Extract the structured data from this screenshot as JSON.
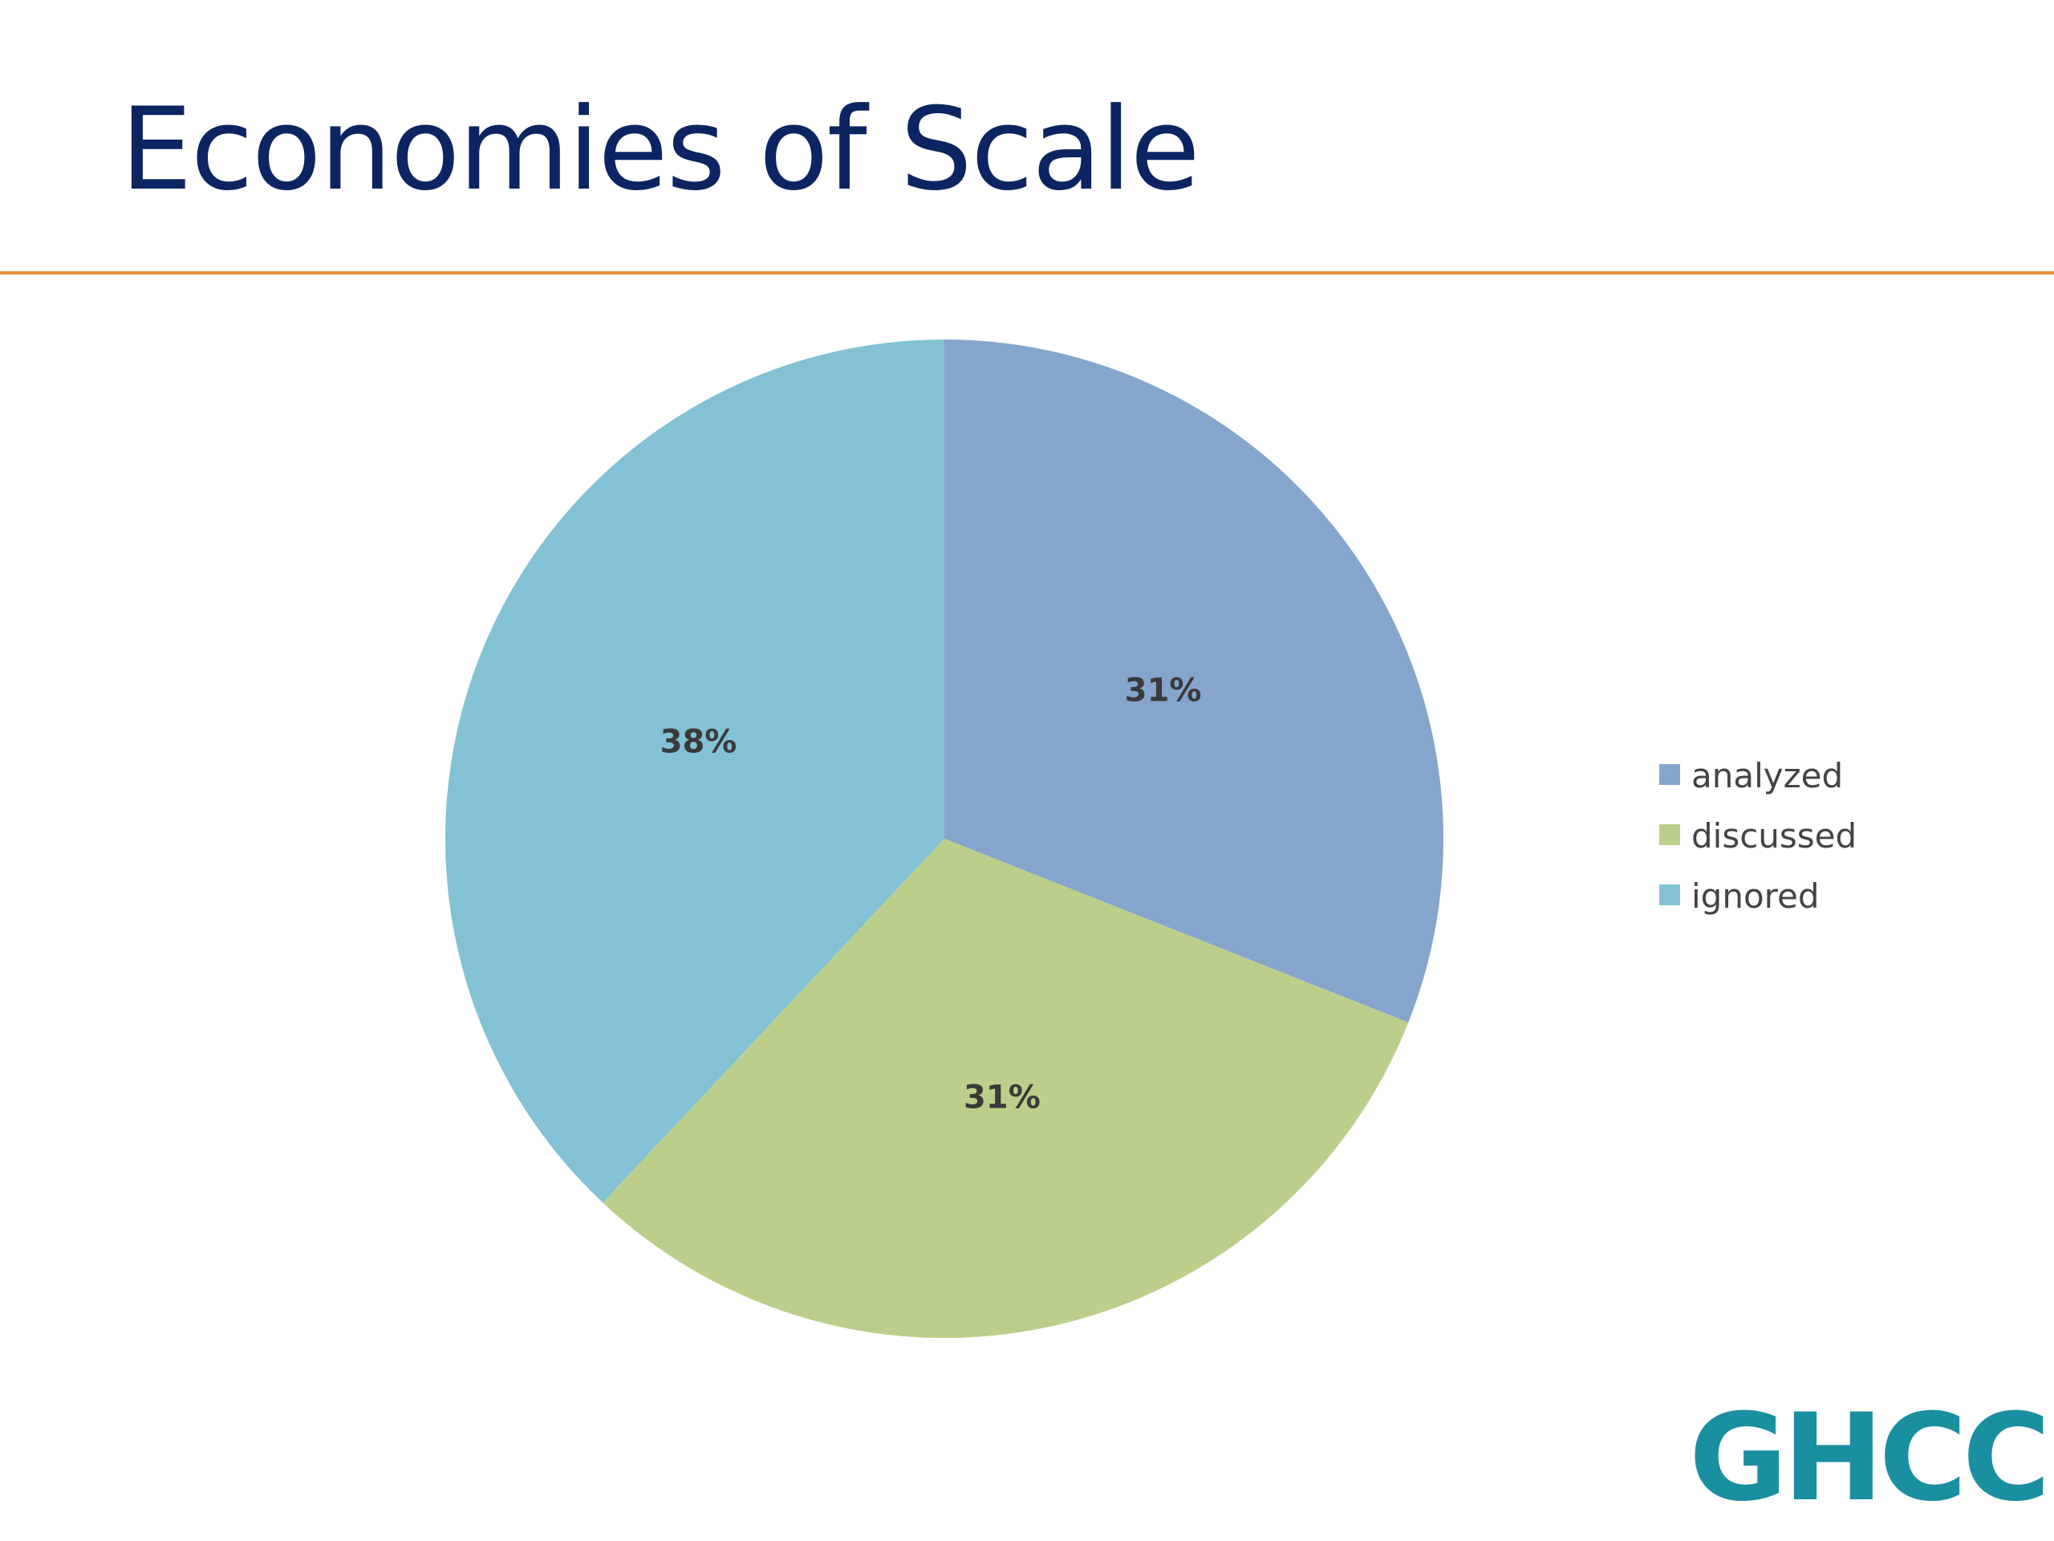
{
  "slide": {
    "title": "Economies of Scale",
    "logo": "GHCC",
    "accent_rule_color": "#e8913a",
    "title_color": "#0c2461",
    "logo_color": "#1a8fa0"
  },
  "chart_data": {
    "type": "pie",
    "title": "",
    "legend_position": "right",
    "start": "12 o'clock, clockwise",
    "series": [
      {
        "slices": [
          {
            "label": "analyzed",
            "value": 31,
            "display": "31%",
            "color": "#85a5cd"
          },
          {
            "label": "discussed",
            "value": 31,
            "display": "31%",
            "color": "#bccf8a"
          },
          {
            "label": "ignored",
            "value": 38,
            "display": "38%",
            "color": "#82c2d4"
          }
        ]
      }
    ]
  }
}
